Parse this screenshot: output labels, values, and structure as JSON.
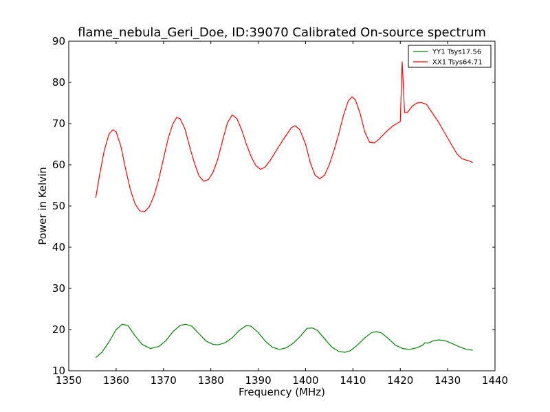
{
  "chart_data": {
    "type": "line",
    "title": "flame_nebula_Geri_Doe, ID:39070 Calibrated On-source spectrum",
    "xlabel": "Frequency (MHz)",
    "ylabel": "Power in Kelvin",
    "xlim": [
      1350,
      1440
    ],
    "ylim": [
      10,
      90
    ],
    "xticks": [
      1350,
      1360,
      1370,
      1380,
      1390,
      1400,
      1410,
      1420,
      1430,
      1440
    ],
    "yticks": [
      10,
      20,
      30,
      40,
      50,
      60,
      70,
      80,
      90
    ],
    "grid": false,
    "legend_position": "top-right",
    "series": [
      {
        "name": "YY1 Tsys17.56",
        "color": "#008000",
        "points": [
          [
            1355.7,
            13.2
          ],
          [
            1357.0,
            14.5
          ],
          [
            1358.5,
            17.0
          ],
          [
            1360.0,
            20.0
          ],
          [
            1361.3,
            21.3
          ],
          [
            1362.5,
            21.0
          ],
          [
            1364.0,
            18.5
          ],
          [
            1365.5,
            16.4
          ],
          [
            1367.3,
            15.4
          ],
          [
            1369.0,
            15.9
          ],
          [
            1370.5,
            17.3
          ],
          [
            1372.0,
            19.5
          ],
          [
            1373.5,
            21.0
          ],
          [
            1374.7,
            21.3
          ],
          [
            1376.0,
            20.8
          ],
          [
            1377.5,
            19.0
          ],
          [
            1379.0,
            17.2
          ],
          [
            1380.5,
            16.4
          ],
          [
            1381.5,
            16.3
          ],
          [
            1383.0,
            16.8
          ],
          [
            1384.5,
            18.0
          ],
          [
            1386.0,
            19.8
          ],
          [
            1387.5,
            21.0
          ],
          [
            1388.5,
            20.8
          ],
          [
            1390.0,
            19.3
          ],
          [
            1391.5,
            17.2
          ],
          [
            1393.0,
            15.7
          ],
          [
            1394.5,
            15.2
          ],
          [
            1396.0,
            15.6
          ],
          [
            1397.5,
            16.8
          ],
          [
            1399.0,
            18.5
          ],
          [
            1400.3,
            20.3
          ],
          [
            1401.5,
            20.4
          ],
          [
            1402.5,
            19.8
          ],
          [
            1404.0,
            17.8
          ],
          [
            1405.5,
            15.8
          ],
          [
            1407.0,
            14.7
          ],
          [
            1408.3,
            14.5
          ],
          [
            1409.5,
            14.9
          ],
          [
            1411.0,
            16.3
          ],
          [
            1412.5,
            18.0
          ],
          [
            1414.0,
            19.3
          ],
          [
            1415.0,
            19.5
          ],
          [
            1416.0,
            19.2
          ],
          [
            1417.5,
            17.8
          ],
          [
            1419.0,
            16.2
          ],
          [
            1420.5,
            15.4
          ],
          [
            1422.0,
            15.2
          ],
          [
            1423.5,
            15.6
          ],
          [
            1424.7,
            16.2
          ],
          [
            1425.2,
            16.8
          ],
          [
            1425.8,
            16.7
          ],
          [
            1427.0,
            17.3
          ],
          [
            1428.2,
            17.5
          ],
          [
            1429.5,
            17.3
          ],
          [
            1431.0,
            16.6
          ],
          [
            1432.5,
            15.8
          ],
          [
            1434.0,
            15.2
          ],
          [
            1435.3,
            15.0
          ]
        ]
      },
      {
        "name": "XX1 Tsys64.71",
        "color": "#ff0000",
        "points": [
          [
            1355.7,
            52.0
          ],
          [
            1356.5,
            57.5
          ],
          [
            1357.5,
            63.5
          ],
          [
            1358.5,
            67.5
          ],
          [
            1359.3,
            68.5
          ],
          [
            1360.0,
            68.0
          ],
          [
            1361.0,
            64.5
          ],
          [
            1362.0,
            59.0
          ],
          [
            1363.0,
            54.0
          ],
          [
            1364.0,
            50.5
          ],
          [
            1365.0,
            48.8
          ],
          [
            1366.0,
            48.6
          ],
          [
            1367.0,
            49.8
          ],
          [
            1368.0,
            52.5
          ],
          [
            1369.0,
            56.5
          ],
          [
            1370.0,
            61.5
          ],
          [
            1371.0,
            66.5
          ],
          [
            1372.0,
            70.0
          ],
          [
            1372.8,
            71.5
          ],
          [
            1373.5,
            71.2
          ],
          [
            1374.5,
            68.8
          ],
          [
            1375.5,
            64.5
          ],
          [
            1376.5,
            60.5
          ],
          [
            1377.5,
            57.3
          ],
          [
            1378.5,
            56.0
          ],
          [
            1379.5,
            56.4
          ],
          [
            1380.5,
            58.3
          ],
          [
            1381.5,
            61.5
          ],
          [
            1382.5,
            66.0
          ],
          [
            1383.5,
            70.2
          ],
          [
            1384.5,
            72.1
          ],
          [
            1385.5,
            71.2
          ],
          [
            1386.5,
            68.5
          ],
          [
            1387.5,
            65.0
          ],
          [
            1388.5,
            62.0
          ],
          [
            1389.5,
            59.8
          ],
          [
            1390.5,
            58.9
          ],
          [
            1391.5,
            59.5
          ],
          [
            1392.5,
            61.0
          ],
          [
            1394.0,
            63.8
          ],
          [
            1395.5,
            66.5
          ],
          [
            1397.0,
            69.0
          ],
          [
            1397.8,
            69.5
          ],
          [
            1398.8,
            68.5
          ],
          [
            1400.0,
            65.0
          ],
          [
            1401.0,
            60.5
          ],
          [
            1402.0,
            57.5
          ],
          [
            1403.0,
            56.6
          ],
          [
            1404.0,
            57.5
          ],
          [
            1405.0,
            60.0
          ],
          [
            1406.0,
            63.5
          ],
          [
            1407.0,
            67.5
          ],
          [
            1408.0,
            72.0
          ],
          [
            1409.0,
            75.5
          ],
          [
            1409.8,
            76.5
          ],
          [
            1410.5,
            75.8
          ],
          [
            1411.5,
            72.5
          ],
          [
            1412.5,
            68.0
          ],
          [
            1413.5,
            65.5
          ],
          [
            1414.5,
            65.3
          ],
          [
            1415.5,
            66.2
          ],
          [
            1417.0,
            68.0
          ],
          [
            1418.5,
            69.5
          ],
          [
            1420.0,
            70.5
          ],
          [
            1420.4,
            85.0
          ],
          [
            1420.9,
            72.7
          ],
          [
            1421.5,
            72.7
          ],
          [
            1422.5,
            74.2
          ],
          [
            1423.5,
            75.0
          ],
          [
            1424.5,
            75.1
          ],
          [
            1425.5,
            74.7
          ],
          [
            1426.5,
            73.0
          ],
          [
            1428.0,
            70.5
          ],
          [
            1429.5,
            67.5
          ],
          [
            1431.0,
            64.5
          ],
          [
            1432.0,
            62.6
          ],
          [
            1433.0,
            61.5
          ],
          [
            1434.0,
            61.1
          ],
          [
            1434.7,
            60.9
          ],
          [
            1435.3,
            60.5
          ]
        ]
      }
    ]
  }
}
